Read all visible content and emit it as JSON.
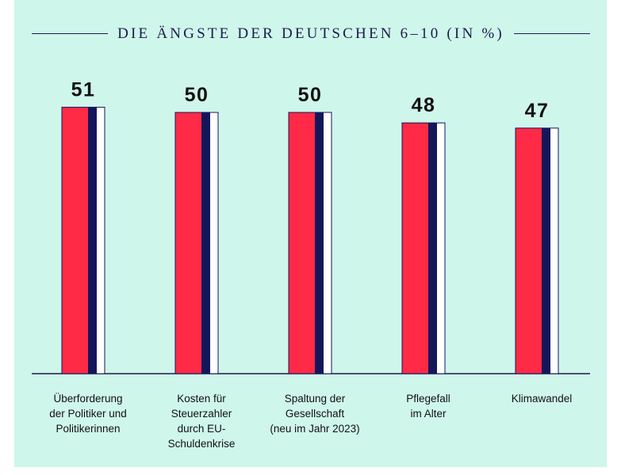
{
  "chart_data": {
    "type": "bar",
    "title": "DIE ÄNGSTE DER DEUTSCHEN 6–10 (IN %)",
    "categories": [
      [
        "Überforderung",
        "der Politiker und",
        "Politikerinnen"
      ],
      [
        "Kosten für",
        "Steuerzahler",
        "durch EU-",
        "Schuldenkrise"
      ],
      [
        "Spaltung der",
        "Gesellschaft",
        "(neu im Jahr 2023)"
      ],
      [
        "Pflegefall",
        "im Alter"
      ],
      [
        "Klimawandel"
      ]
    ],
    "values": [
      51,
      50,
      50,
      48,
      47
    ],
    "value_labels": [
      "51",
      "50",
      "50",
      "48",
      "47"
    ],
    "ylim": [
      0,
      60
    ],
    "xlabel": "",
    "ylabel": "",
    "colors": {
      "bar_main": "#ff2a46",
      "bar_stripe": "#14165a",
      "bar_light": "#ffffff",
      "outline": "#14165a",
      "axis": "#1b1b4b",
      "background": "#cff6eb",
      "text": "#111111"
    }
  }
}
